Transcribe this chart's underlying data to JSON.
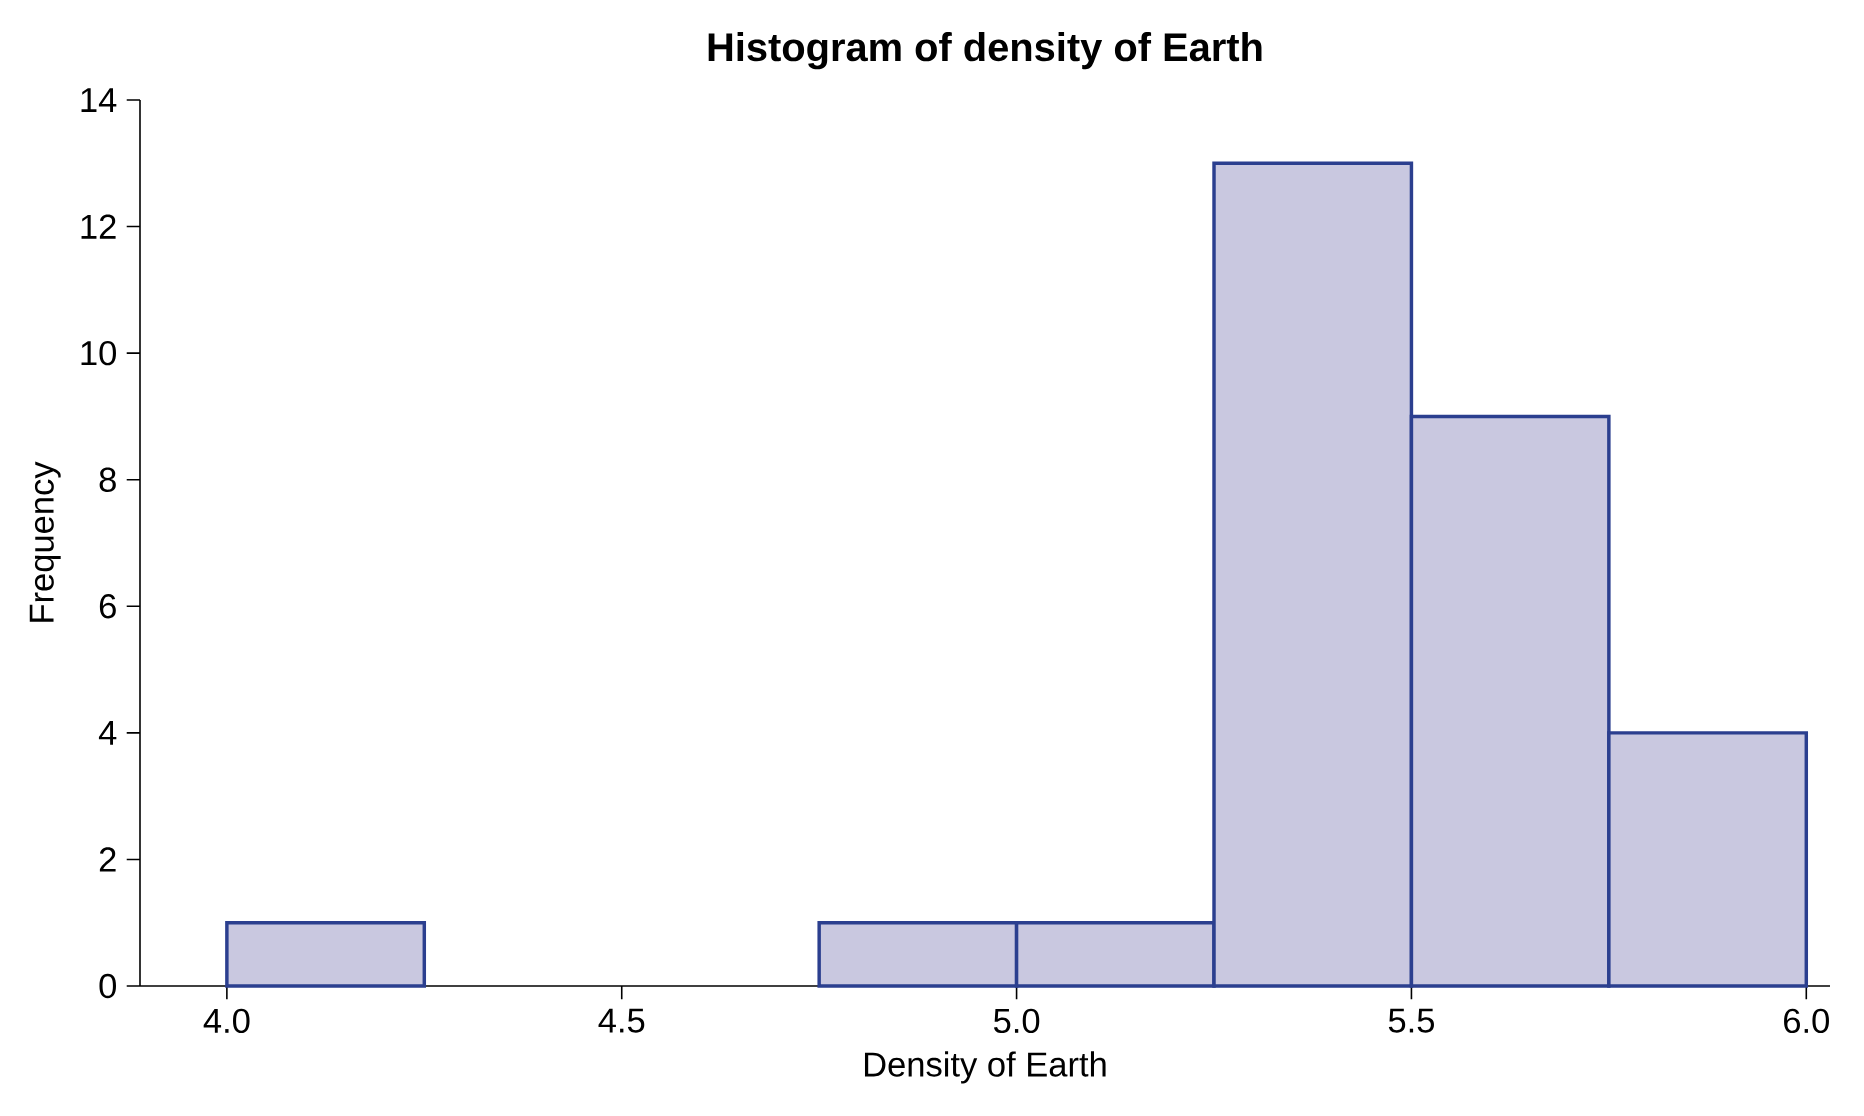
{
  "chart_data": {
    "type": "histogram",
    "title": "Histogram of density of Earth",
    "xlabel": "Density of Earth",
    "ylabel": "Frequency",
    "bins": [
      4.0,
      4.25,
      4.5,
      4.75,
      5.0,
      5.25,
      5.5,
      5.75,
      6.0
    ],
    "values": [
      1,
      0,
      0,
      1,
      1,
      13,
      9,
      4
    ],
    "color": "#c9c8e0",
    "xlim": [
      3.89,
      6.03
    ],
    "ylim": [
      0,
      14
    ],
    "xticks": [
      {
        "value": 4,
        "label": "4.0"
      },
      {
        "value": 4.5,
        "label": "4.5"
      },
      {
        "value": 5,
        "label": "5.0"
      },
      {
        "value": 5.5,
        "label": "5.5"
      },
      {
        "value": 6,
        "label": "6.0"
      }
    ],
    "yticks": [
      0,
      2,
      4,
      6,
      8,
      10,
      12,
      14
    ]
  }
}
